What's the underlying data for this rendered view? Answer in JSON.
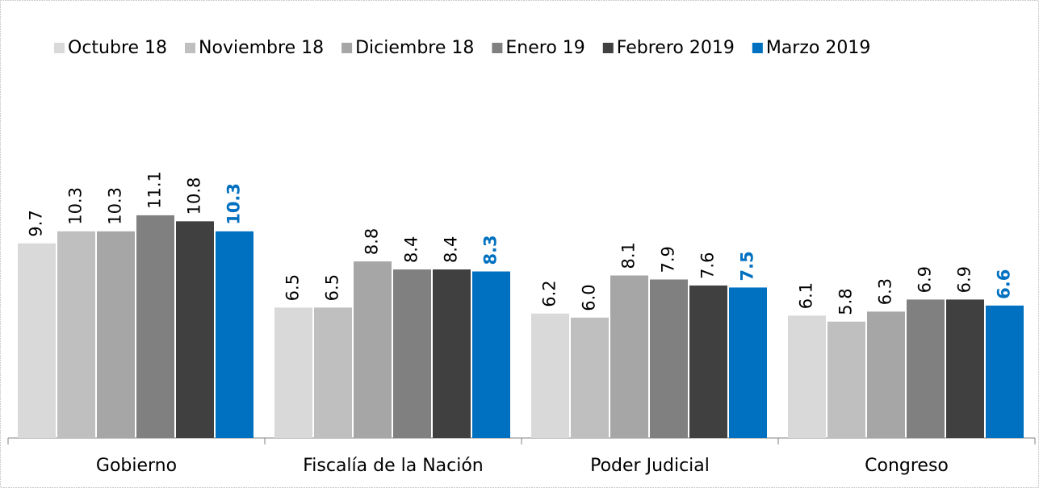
{
  "chart_data": {
    "type": "bar",
    "categories": [
      "Gobierno",
      "Fiscalía de la Nación",
      "Poder Judicial",
      "Congreso"
    ],
    "ylim": [
      0,
      16
    ],
    "series": [
      {
        "name": "Octubre 18",
        "color": "#d9d9d9",
        "values": [
          9.7,
          6.5,
          6.2,
          6.1
        ],
        "value_labels": [
          "9.7",
          "6.5",
          "6.2",
          "6.1"
        ]
      },
      {
        "name": "Noviembre 18",
        "color": "#bfbfbf",
        "values": [
          10.3,
          6.5,
          6.0,
          5.8
        ],
        "value_labels": [
          "10.3",
          "6.5",
          "6.0",
          "5.8"
        ]
      },
      {
        "name": "Diciembre 18",
        "color": "#a6a6a6",
        "values": [
          10.3,
          8.8,
          8.1,
          6.3
        ],
        "value_labels": [
          "10.3",
          "8.8",
          "8.1",
          "6.3"
        ]
      },
      {
        "name": "Enero 19",
        "color": "#808080",
        "values": [
          11.1,
          8.4,
          7.9,
          6.9
        ],
        "value_labels": [
          "11.1",
          "8.4",
          "7.9",
          "6.9"
        ]
      },
      {
        "name": "Febrero 2019",
        "color": "#404040",
        "values": [
          10.8,
          8.4,
          7.6,
          6.9
        ],
        "value_labels": [
          "10.8",
          "8.4",
          "7.6",
          "6.9"
        ]
      },
      {
        "name": "Marzo 2019",
        "color": "#0070c0",
        "values": [
          10.3,
          8.3,
          7.5,
          6.6
        ],
        "value_labels": [
          "10.3",
          "8.3",
          "7.5",
          "6.6"
        ]
      }
    ]
  }
}
